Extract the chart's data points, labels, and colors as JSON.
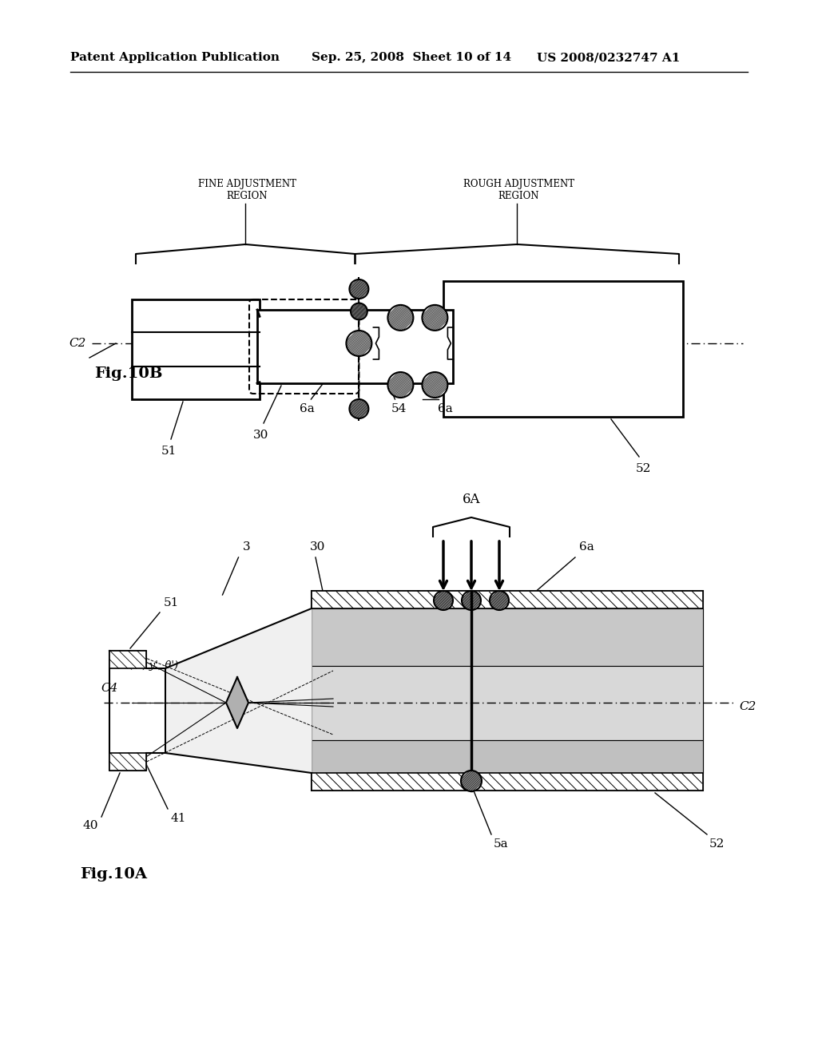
{
  "bg_color": "#ffffff",
  "header_text": "Patent Application Publication",
  "header_date": "Sep. 25, 2008  Sheet 10 of 14",
  "header_patent": "US 2008/0232747 A1",
  "fig10B_label": "Fig.10B",
  "fig10A_label": "Fig.10A",
  "region_fine": "FINE ADJUSTMENT\nREGION",
  "region_rough": "ROUGH ADJUSTMENT\nREGION"
}
